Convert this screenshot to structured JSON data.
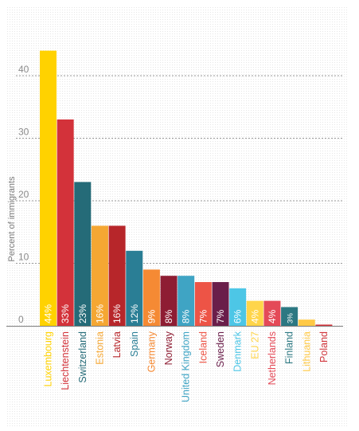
{
  "chart_data": {
    "type": "bar",
    "ylabel": "Percent of immigrants",
    "ylim": [
      0,
      48
    ],
    "yticks": [
      0,
      10,
      20,
      30,
      40
    ],
    "grid": true,
    "categories": [
      "Luxembourg",
      "Liechtenstein",
      "Switzerland",
      "Estonia",
      "Latvia",
      "Spain",
      "Germany",
      "Norway",
      "United Kingdom",
      "Iceland",
      "Sweden",
      "Denmark",
      "EU 27",
      "Netherlands",
      "Finland",
      "Lithuania",
      "Poland"
    ],
    "values": [
      44,
      33,
      23,
      16,
      16,
      12,
      9,
      8,
      8,
      7,
      7,
      6,
      4,
      4,
      3,
      1,
      0.2
    ],
    "data_labels": [
      "44%",
      "33%",
      "23%",
      "16%",
      "16%",
      "12%",
      "9%",
      "8%",
      "8%",
      "7%",
      "7%",
      "6%",
      "4%",
      "4%",
      "3%",
      "",
      ""
    ],
    "colors": [
      "#FFD200",
      "#D3323A",
      "#256B78",
      "#F5A733",
      "#B7262A",
      "#2A7E95",
      "#F58A34",
      "#8E1D33",
      "#3FA4C4",
      "#ED5446",
      "#6A1E4A",
      "#4DC6E6",
      "#FFD54A",
      "#E44A58",
      "#2C7882",
      "#FFC946",
      "#D0343B"
    ]
  }
}
